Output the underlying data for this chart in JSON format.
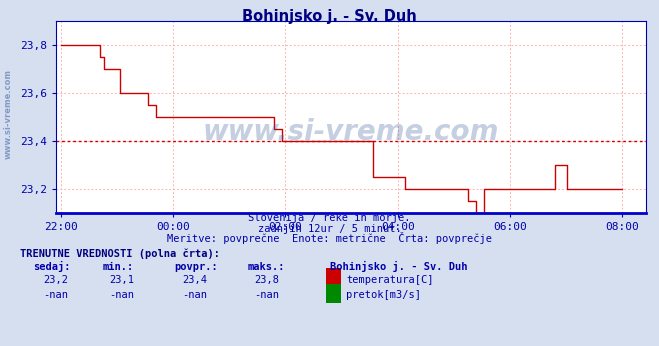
{
  "title": "Bohinjsko j. - Sv. Duh",
  "title_color": "#000080",
  "bg_color": "#d6dff0",
  "plot_bg_color": "#ffffff",
  "grid_color": "#ffb0b0",
  "axis_color": "#0000aa",
  "x_tick_labels": [
    "22:00",
    "00:00",
    "02:00",
    "04:00",
    "06:00",
    "08:00"
  ],
  "x_tick_positions": [
    0,
    24,
    48,
    72,
    96,
    120
  ],
  "ylim_min": 23.1,
  "ylim_max": 23.9,
  "yticks": [
    23.2,
    23.4,
    23.6,
    23.8
  ],
  "ytick_labels": [
    "23,2",
    "23,4",
    "23,6",
    "23,8"
  ],
  "avg_line_y": 23.4,
  "avg_line_color": "#cc0000",
  "temp_color": "#cc0000",
  "watermark_text": "www.si-vreme.com",
  "watermark_color": "#4060a0",
  "watermark_alpha": 0.3,
  "subtitle1": "Slovenija / reke in morje.",
  "subtitle2": "zadnjih 12ur / 5 minut.",
  "subtitle3": "Meritve: povprečne  Enote: metrične  Črta: povprečje",
  "subtitle_color": "#0000aa",
  "table_header": "TRENUTNE VREDNOSTI (polna črta):",
  "col_headers": [
    "sedaj:",
    "min.:",
    "povpr.:",
    "maks.:"
  ],
  "row1_vals": [
    "23,2",
    "23,1",
    "23,4",
    "23,8"
  ],
  "row1_label": "temperatura[C]",
  "row1_color": "#cc0000",
  "row2_vals": [
    "-nan",
    "-nan",
    "-nan",
    "-nan"
  ],
  "row2_label": "pretok[m3/s]",
  "row2_color": "#008800",
  "station_label": "Bohinjsko j. - Sv. Duh",
  "temp_data": [
    23.8,
    23.8,
    23.8,
    23.8,
    23.8,
    23.8,
    23.8,
    23.8,
    23.8,
    23.8,
    23.75,
    23.7,
    23.7,
    23.7,
    23.7,
    23.6,
    23.6,
    23.6,
    23.6,
    23.6,
    23.6,
    23.6,
    23.55,
    23.55,
    23.5,
    23.5,
    23.5,
    23.5,
    23.5,
    23.5,
    23.5,
    23.5,
    23.5,
    23.5,
    23.5,
    23.5,
    23.5,
    23.5,
    23.5,
    23.5,
    23.5,
    23.5,
    23.5,
    23.5,
    23.5,
    23.5,
    23.5,
    23.5,
    23.5,
    23.5,
    23.5,
    23.5,
    23.5,
    23.5,
    23.45,
    23.45,
    23.4,
    23.4,
    23.4,
    23.4,
    23.4,
    23.4,
    23.4,
    23.4,
    23.4,
    23.4,
    23.4,
    23.4,
    23.4,
    23.4,
    23.4,
    23.4,
    23.4,
    23.4,
    23.4,
    23.4,
    23.4,
    23.4,
    23.4,
    23.25,
    23.25,
    23.25,
    23.25,
    23.25,
    23.25,
    23.25,
    23.25,
    23.2,
    23.2,
    23.2,
    23.2,
    23.2,
    23.2,
    23.2,
    23.2,
    23.2,
    23.2,
    23.2,
    23.2,
    23.2,
    23.2,
    23.2,
    23.2,
    23.15,
    23.15,
    23.1,
    23.1,
    23.2,
    23.2,
    23.2,
    23.2,
    23.2,
    23.2,
    23.2,
    23.2,
    23.2,
    23.2,
    23.2,
    23.2,
    23.2,
    23.2,
    23.2,
    23.2,
    23.2,
    23.2,
    23.3,
    23.3,
    23.3,
    23.2,
    23.2,
    23.2,
    23.2,
    23.2,
    23.2,
    23.2,
    23.2,
    23.2,
    23.2,
    23.2,
    23.2,
    23.2,
    23.2,
    23.2
  ]
}
